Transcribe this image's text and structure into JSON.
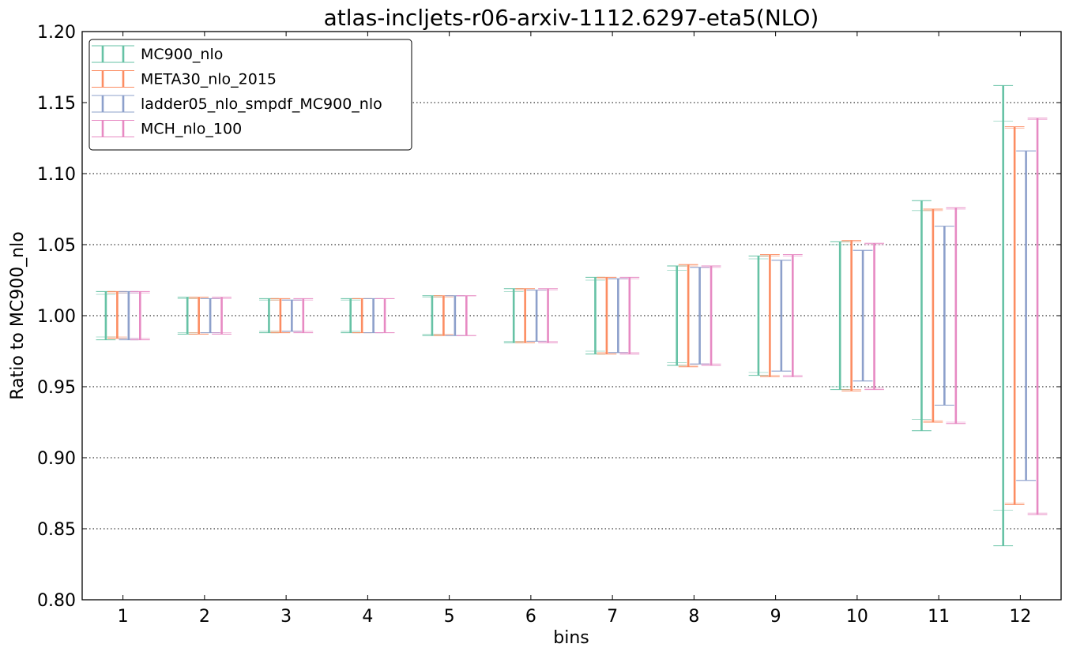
{
  "chart_data": {
    "type": "errorbar",
    "title": "atlas-incljets-r06-arxiv-1112.6297-eta5(NLO)",
    "xlabel": "bins",
    "ylabel": "Ratio to MC900_nlo",
    "xlim": [
      0.5,
      12.5
    ],
    "ylim": [
      0.8,
      1.2
    ],
    "xticks": [
      "1",
      "2",
      "3",
      "4",
      "5",
      "6",
      "7",
      "8",
      "9",
      "10",
      "11",
      "12"
    ],
    "yticks": [
      "0.80",
      "0.85",
      "0.90",
      "0.95",
      "1.00",
      "1.05",
      "1.10",
      "1.15",
      "1.20"
    ],
    "grid": "horizontal-dotted",
    "legend_position": "top-left",
    "categories": [
      1,
      2,
      3,
      4,
      5,
      6,
      7,
      8,
      9,
      10,
      11,
      12
    ],
    "series": [
      {
        "name": "MC900_nlo",
        "color": "#66c2a5",
        "low": [
          0.983,
          0.987,
          0.988,
          0.988,
          0.986,
          0.981,
          0.973,
          0.965,
          0.958,
          0.948,
          0.919,
          0.838
        ],
        "high": [
          1.017,
          1.013,
          1.012,
          1.012,
          1.014,
          1.019,
          1.027,
          1.035,
          1.042,
          1.052,
          1.081,
          1.162
        ],
        "inner_low": [
          0.985,
          0.988,
          0.989,
          0.989,
          0.987,
          0.982,
          0.975,
          0.967,
          0.96,
          0.95,
          0.927,
          0.863
        ],
        "inner_high": [
          1.015,
          1.012,
          1.011,
          1.011,
          1.013,
          1.017,
          1.025,
          1.032,
          1.04,
          1.05,
          1.074,
          1.137
        ]
      },
      {
        "name": "META30_nlo_2015",
        "color": "#fc8d62",
        "low": [
          0.984,
          0.987,
          0.988,
          0.988,
          0.986,
          0.981,
          0.973,
          0.964,
          0.957,
          0.947,
          0.925,
          0.867
        ],
        "high": [
          1.017,
          1.013,
          1.012,
          1.012,
          1.014,
          1.019,
          1.027,
          1.036,
          1.043,
          1.053,
          1.075,
          1.133
        ],
        "inner_low": [
          0.985,
          0.988,
          0.989,
          0.988,
          0.987,
          0.982,
          0.974,
          0.965,
          0.958,
          0.948,
          0.926,
          0.868
        ],
        "inner_high": [
          1.016,
          1.012,
          1.011,
          1.012,
          1.013,
          1.018,
          1.026,
          1.035,
          1.042,
          1.052,
          1.074,
          1.132
        ]
      },
      {
        "name": "ladder05_nlo_smpdf_MC900_nlo",
        "color": "#8da0cb",
        "low": [
          0.983,
          0.988,
          0.989,
          0.988,
          0.986,
          0.982,
          0.974,
          0.966,
          0.961,
          0.954,
          0.937,
          0.884
        ],
        "high": [
          1.017,
          1.012,
          1.011,
          1.012,
          1.014,
          1.018,
          1.026,
          1.034,
          1.039,
          1.046,
          1.063,
          1.116
        ],
        "inner_low": [
          0.984,
          0.988,
          0.989,
          0.988,
          0.986,
          0.982,
          0.974,
          0.966,
          0.961,
          0.954,
          0.937,
          0.884
        ],
        "inner_high": [
          1.016,
          1.012,
          1.011,
          1.012,
          1.014,
          1.018,
          1.026,
          1.034,
          1.039,
          1.046,
          1.063,
          1.116
        ]
      },
      {
        "name": "MCH_nlo_100",
        "color": "#e78ac3",
        "low": [
          0.983,
          0.987,
          0.988,
          0.988,
          0.986,
          0.981,
          0.973,
          0.965,
          0.957,
          0.948,
          0.924,
          0.86
        ],
        "high": [
          1.017,
          1.013,
          1.012,
          1.012,
          1.014,
          1.019,
          1.027,
          1.035,
          1.043,
          1.051,
          1.076,
          1.139
        ],
        "inner_low": [
          0.984,
          0.988,
          0.989,
          0.988,
          0.986,
          0.982,
          0.974,
          0.966,
          0.958,
          0.949,
          0.925,
          0.861
        ],
        "inner_high": [
          1.016,
          1.012,
          1.011,
          1.012,
          1.014,
          1.018,
          1.026,
          1.034,
          1.042,
          1.05,
          1.075,
          1.138
        ]
      }
    ]
  }
}
